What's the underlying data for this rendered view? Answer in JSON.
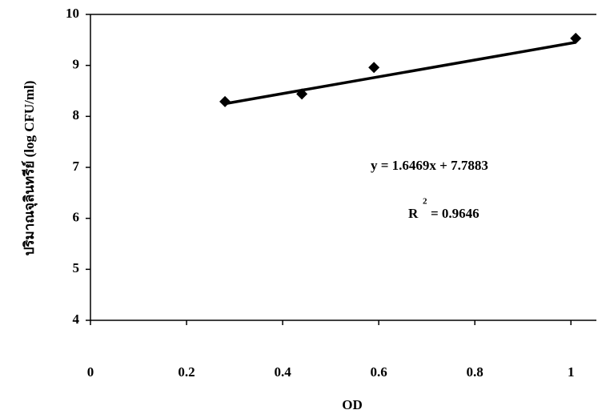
{
  "chart_data": {
    "type": "scatter",
    "x_label": "OD",
    "y_label": "ปริมาณจุลินทรีย์ (log CFU/ml)",
    "series": [
      {
        "x": [
          0.28,
          0.44,
          0.59,
          1.01
        ],
        "values": [
          8.29,
          8.44,
          8.96,
          9.53
        ],
        "color": "#000000"
      }
    ],
    "trendline": {
      "x": [
        0.28,
        1.01
      ],
      "values": [
        8.249,
        9.452
      ],
      "color": "#000000"
    },
    "equation": "y = 1.6469x + 7.7883",
    "r_squared": {
      "symbol": "R",
      "superscript": "2",
      "text": "= 0.9646"
    },
    "xlim": [
      0,
      1.053
    ],
    "ylim": [
      4,
      10
    ],
    "xticks": [
      0,
      0.2,
      0.4,
      0.6,
      0.8,
      1
    ],
    "yticks": [
      4,
      5,
      6,
      7,
      8,
      9,
      10
    ]
  }
}
